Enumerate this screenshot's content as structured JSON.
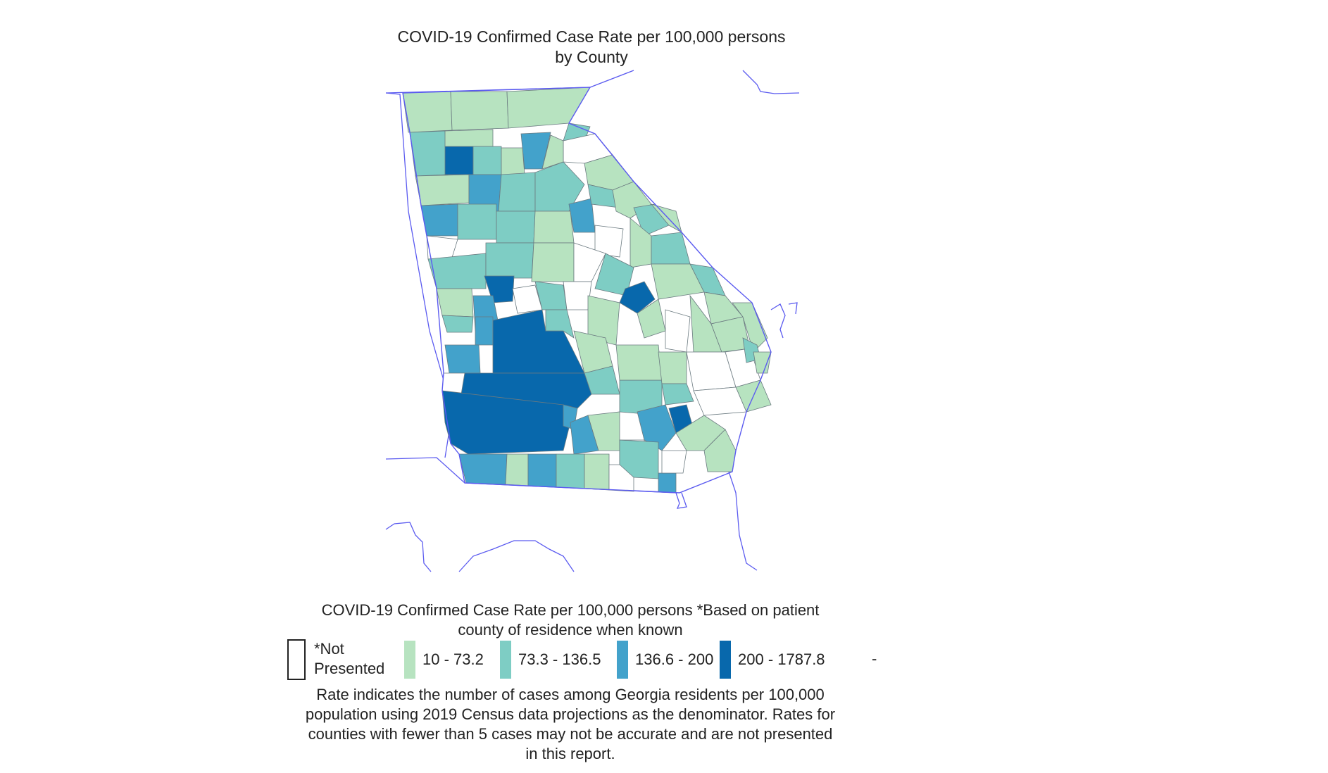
{
  "map": {
    "title_line1": "COVID-19 Confirmed Case Rate per 100,000 persons",
    "title_line2": "by County",
    "border_color": "#5b5bf0",
    "county_border_color": "#6b7a80",
    "no_data_color": "#ffffff"
  },
  "legend": {
    "title_line1": "COVID-19 Confirmed Case Rate per 100,000 persons *Based on patient",
    "title_line2": "county of residence when known",
    "items": [
      {
        "label_line1": "*Not",
        "label_line2": "Presented",
        "color": "#ffffff",
        "outline": true
      },
      {
        "label": "10  -  73.2",
        "color": "#b7e3c0"
      },
      {
        "label": "73.3  -  136.5",
        "color": "#7ecdc4"
      },
      {
        "label": "136.6  -  200",
        "color": "#43a2cb"
      },
      {
        "label": "200  -  1787.8",
        "color": "#0868ac"
      }
    ],
    "trailing_dash": "-"
  },
  "footnote": {
    "line1": "Rate indicates the number of cases among Georgia residents per 100,000",
    "line2": "population using 2019 Census data projections as the denominator. Rates for",
    "line3": "counties with fewer than 5 cases may not be accurate and are not presented",
    "line4": "in this report."
  }
}
